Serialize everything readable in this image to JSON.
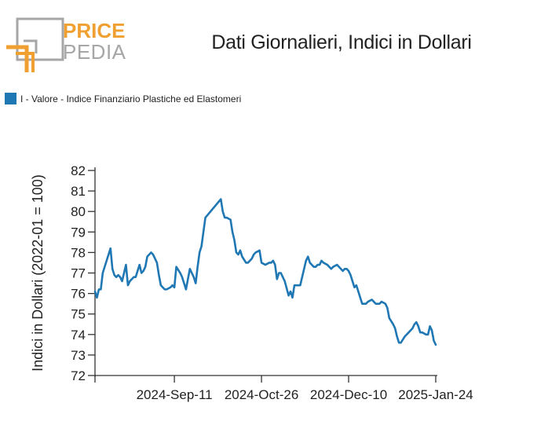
{
  "logo": {
    "line1": "PRICE",
    "line2": "PEDIA",
    "colors": {
      "orange": "#f0a030",
      "gray": "#a6a6a6"
    }
  },
  "chart_data": {
    "type": "line",
    "title": "Dati Giornalieri, Indici in Dollari",
    "ylabel": "Indici in Dollari (2022-01 = 100)",
    "xlabel": "",
    "ylim": [
      72,
      82
    ],
    "yticks": [
      72,
      73,
      74,
      75,
      76,
      77,
      78,
      79,
      80,
      81,
      82
    ],
    "x_range": [
      "2024-08-01",
      "2025-01-24"
    ],
    "xticks": [
      {
        "date": "2024-08-01",
        "label": ""
      },
      {
        "date": "2024-09-11",
        "label": "2024-Sep-11"
      },
      {
        "date": "2024-10-26",
        "label": "2024-Oct-26"
      },
      {
        "date": "2024-12-10",
        "label": "2024-Dec-10"
      },
      {
        "date": "2025-01-24",
        "label": "2025-Jan-24"
      }
    ],
    "legend_position": "top-left",
    "color": "#1f77b4",
    "series": [
      {
        "name": "I - Valore - Indice Finanziario Plastiche ed Elastomeri",
        "x": [
          "2024-08-01",
          "2024-08-02",
          "2024-08-03",
          "2024-08-04",
          "2024-08-05",
          "2024-08-06",
          "2024-08-09",
          "2024-08-10",
          "2024-08-11",
          "2024-08-12",
          "2024-08-13",
          "2024-08-14",
          "2024-08-15",
          "2024-08-17",
          "2024-08-18",
          "2024-08-19",
          "2024-08-20",
          "2024-08-21",
          "2024-08-22",
          "2024-08-24",
          "2024-08-25",
          "2024-08-26",
          "2024-08-27",
          "2024-08-28",
          "2024-08-30",
          "2024-08-31",
          "2024-09-01",
          "2024-09-02",
          "2024-09-03",
          "2024-09-04",
          "2024-09-05",
          "2024-09-06",
          "2024-09-07",
          "2024-09-09",
          "2024-09-10",
          "2024-09-11",
          "2024-09-12",
          "2024-09-14",
          "2024-09-15",
          "2024-09-16",
          "2024-09-17",
          "2024-09-19",
          "2024-09-20",
          "2024-09-21",
          "2024-09-22",
          "2024-09-23",
          "2024-09-24",
          "2024-09-25",
          "2024-09-27",
          "2024-10-05",
          "2024-10-06",
          "2024-10-07",
          "2024-10-08",
          "2024-10-10",
          "2024-10-11",
          "2024-10-12",
          "2024-10-13",
          "2024-10-14",
          "2024-10-15",
          "2024-10-16",
          "2024-10-18",
          "2024-10-19",
          "2024-10-21",
          "2024-10-22",
          "2024-10-23",
          "2024-10-25",
          "2024-10-26",
          "2024-10-28",
          "2024-10-30",
          "2024-10-31",
          "2024-11-01",
          "2024-11-02",
          "2024-11-03",
          "2024-11-04",
          "2024-11-05",
          "2024-11-06",
          "2024-11-07",
          "2024-11-09",
          "2024-11-10",
          "2024-11-11",
          "2024-11-12",
          "2024-11-13",
          "2024-11-14",
          "2024-11-15",
          "2024-11-16",
          "2024-11-18",
          "2024-11-19",
          "2024-11-20",
          "2024-11-22",
          "2024-11-23",
          "2024-11-24",
          "2024-11-25",
          "2024-11-26",
          "2024-11-27",
          "2024-11-29",
          "2024-12-01",
          "2024-12-02",
          "2024-12-04",
          "2024-12-05",
          "2024-12-06",
          "2024-12-07",
          "2024-12-08",
          "2024-12-09",
          "2024-12-10",
          "2024-12-11",
          "2024-12-12",
          "2024-12-13",
          "2024-12-14",
          "2024-12-15",
          "2024-12-17",
          "2024-12-18",
          "2024-12-19",
          "2024-12-20",
          "2024-12-22",
          "2024-12-24",
          "2024-12-25",
          "2024-12-26",
          "2024-12-27",
          "2024-12-29",
          "2024-12-30",
          "2024-12-31",
          "2025-01-02",
          "2025-01-03",
          "2025-01-04",
          "2025-01-05",
          "2025-01-06",
          "2025-01-08",
          "2025-01-09",
          "2025-01-10",
          "2025-01-12",
          "2025-01-13",
          "2025-01-14",
          "2025-01-15",
          "2025-01-16",
          "2025-01-17",
          "2025-01-19",
          "2025-01-20",
          "2025-01-21",
          "2025-01-22",
          "2025-01-23",
          "2025-01-24"
        ],
        "values": [
          76.1,
          75.8,
          76.2,
          76.2,
          77.0,
          77.3,
          78.2,
          77.2,
          76.9,
          76.8,
          76.9,
          76.8,
          76.6,
          77.4,
          76.4,
          76.6,
          76.7,
          76.8,
          76.8,
          77.4,
          77.0,
          77.1,
          77.3,
          77.8,
          78.0,
          77.9,
          77.7,
          77.5,
          76.9,
          76.4,
          76.3,
          76.2,
          76.2,
          76.3,
          76.4,
          76.3,
          77.3,
          77.0,
          76.8,
          76.5,
          76.2,
          77.2,
          77.0,
          76.8,
          76.5,
          77.3,
          78.0,
          78.3,
          79.7,
          80.6,
          80.0,
          79.7,
          79.7,
          79.6,
          79.0,
          78.6,
          78.0,
          77.9,
          78.1,
          77.8,
          77.5,
          77.5,
          77.7,
          77.9,
          78.0,
          78.1,
          77.5,
          77.4,
          77.5,
          77.5,
          77.6,
          77.4,
          76.7,
          77.0,
          77.0,
          76.8,
          76.6,
          75.9,
          76.1,
          75.8,
          76.4,
          76.4,
          76.4,
          76.4,
          76.8,
          77.6,
          77.8,
          77.5,
          77.3,
          77.3,
          77.4,
          77.4,
          77.6,
          77.5,
          77.4,
          77.2,
          77.3,
          77.4,
          77.3,
          77.2,
          77.1,
          77.2,
          77.2,
          77.1,
          76.9,
          76.6,
          76.3,
          76.4,
          76.1,
          75.5,
          75.5,
          75.5,
          75.6,
          75.7,
          75.5,
          75.5,
          75.5,
          75.6,
          75.5,
          75.3,
          74.8,
          74.5,
          74.3,
          73.9,
          73.6,
          73.6,
          73.9,
          74.0,
          74.1,
          74.3,
          74.5,
          74.6,
          74.4,
          74.1,
          74.1,
          74.0,
          74.0,
          74.4,
          74.2,
          73.7,
          73.5
        ]
      }
    ]
  }
}
